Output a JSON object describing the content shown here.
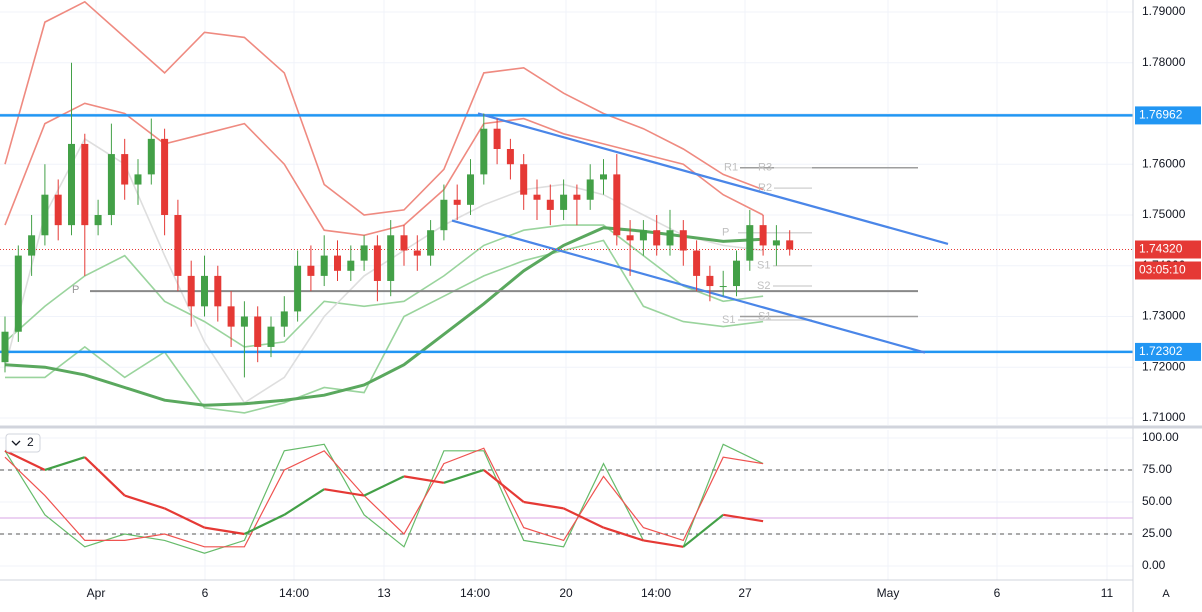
{
  "chart_data": [
    {
      "type": "candlestick",
      "open": [
        1.721,
        1.727,
        1.742,
        1.746,
        1.754,
        1.748,
        1.764,
        1.748,
        1.75,
        1.762,
        1.756,
        1.758,
        1.765,
        1.75,
        1.738,
        1.732,
        1.738,
        1.732,
        1.728,
        1.73,
        1.724,
        1.728,
        1.731,
        1.74,
        1.738,
        1.742,
        1.739,
        1.741,
        1.744,
        1.737,
        1.746,
        1.743,
        1.742,
        1.747,
        1.753,
        1.752,
        1.758,
        1.767,
        1.763,
        1.76,
        1.754,
        1.753,
        1.751,
        1.754,
        1.753,
        1.757,
        1.758,
        1.746,
        1.745,
        1.747,
        1.744,
        1.747,
        1.743,
        1.738,
        1.736,
        1.736,
        1.741,
        1.748,
        1.744,
        1.745
      ],
      "high": [
        1.73,
        1.744,
        1.75,
        1.76,
        1.757,
        1.78,
        1.766,
        1.753,
        1.768,
        1.765,
        1.761,
        1.769,
        1.767,
        1.753,
        1.741,
        1.742,
        1.74,
        1.735,
        1.733,
        1.732,
        1.73,
        1.734,
        1.743,
        1.744,
        1.746,
        1.745,
        1.744,
        1.746,
        1.746,
        1.749,
        1.748,
        1.746,
        1.749,
        1.756,
        1.756,
        1.761,
        1.77,
        1.769,
        1.765,
        1.762,
        1.757,
        1.756,
        1.757,
        1.756,
        1.76,
        1.761,
        1.762,
        1.749,
        1.749,
        1.75,
        1.751,
        1.749,
        1.745,
        1.74,
        1.739,
        1.743,
        1.751,
        1.75,
        1.748,
        1.747
      ],
      "low": [
        1.719,
        1.725,
        1.738,
        1.744,
        1.745,
        1.746,
        1.738,
        1.746,
        1.748,
        1.753,
        1.752,
        1.756,
        1.746,
        1.735,
        1.728,
        1.73,
        1.729,
        1.724,
        1.718,
        1.721,
        1.722,
        1.726,
        1.729,
        1.735,
        1.736,
        1.737,
        1.737,
        1.739,
        1.733,
        1.734,
        1.74,
        1.739,
        1.74,
        1.745,
        1.749,
        1.75,
        1.756,
        1.76,
        1.757,
        1.751,
        1.749,
        1.748,
        1.749,
        1.748,
        1.751,
        1.754,
        1.744,
        1.738,
        1.742,
        1.742,
        1.742,
        1.74,
        1.735,
        1.733,
        1.734,
        1.734,
        1.739,
        1.742,
        1.74,
        1.742
      ],
      "close": [
        1.727,
        1.742,
        1.746,
        1.754,
        1.748,
        1.764,
        1.748,
        1.75,
        1.762,
        1.756,
        1.758,
        1.765,
        1.75,
        1.738,
        1.732,
        1.738,
        1.732,
        1.728,
        1.73,
        1.724,
        1.728,
        1.731,
        1.74,
        1.738,
        1.742,
        1.739,
        1.741,
        1.744,
        1.737,
        1.746,
        1.743,
        1.742,
        1.747,
        1.753,
        1.752,
        1.758,
        1.767,
        1.763,
        1.76,
        1.754,
        1.753,
        1.751,
        1.754,
        1.753,
        1.757,
        1.758,
        1.746,
        1.745,
        1.747,
        1.744,
        1.747,
        1.743,
        1.738,
        1.736,
        1.736,
        1.741,
        1.748,
        1.744,
        1.745,
        1.7432
      ],
      "up_color": "#43a047",
      "down_color": "#e53935",
      "overlays": [
        {
          "color": "#ef8a80",
          "values": [
            1.76,
            1.788,
            1.792,
            1.785,
            1.778,
            1.786,
            1.785,
            1.778,
            1.756,
            1.75,
            1.751,
            1.759,
            1.778,
            1.779,
            1.774,
            1.77,
            1.767,
            1.763,
            1.758,
            1.755
          ]
        },
        {
          "color": "#ef8a80",
          "values": [
            1.748,
            1.768,
            1.772,
            1.77,
            1.764,
            1.766,
            1.768,
            1.76,
            1.747,
            1.746,
            1.748,
            1.755,
            1.768,
            1.769,
            1.766,
            1.764,
            1.762,
            1.76,
            1.754,
            1.75
          ]
        },
        {
          "color": "#9ad49d",
          "values": [
            1.725,
            1.732,
            1.738,
            1.742,
            1.733,
            1.729,
            1.724,
            1.725,
            1.733,
            1.732,
            1.733,
            1.738,
            1.744,
            1.747,
            1.748,
            1.748,
            1.742,
            1.736,
            1.733,
            1.734
          ]
        },
        {
          "color": "#9ad49d",
          "values": [
            1.718,
            1.718,
            1.724,
            1.718,
            1.723,
            1.712,
            1.711,
            1.713,
            1.716,
            1.715,
            1.73,
            1.734,
            1.738,
            1.741,
            1.743,
            1.745,
            1.732,
            1.729,
            1.728,
            1.729
          ]
        },
        {
          "color": "#dedede",
          "values": [
            1.72,
            1.75,
            1.765,
            1.76,
            1.742,
            1.725,
            1.713,
            1.718,
            1.73,
            1.738,
            1.743,
            1.748,
            1.752,
            1.755,
            1.756,
            1.754,
            1.75,
            1.746,
            1.744,
            1.743
          ]
        },
        {
          "color": "#5aa85e",
          "values": [
            1.7205,
            1.72,
            1.7185,
            1.716,
            1.7135,
            1.7125,
            1.7128,
            1.7135,
            1.7145,
            1.7165,
            1.7205,
            1.7265,
            1.7325,
            1.739,
            1.744,
            1.7475,
            1.7468,
            1.7458,
            1.7448,
            1.7452
          ]
        }
      ],
      "levels": [
        1.76962,
        1.72302
      ],
      "level_color": "#2196f3",
      "trendlines": [
        [
          1.77,
          1.7443
        ],
        [
          1.7489,
          1.7229
        ]
      ],
      "trend_color": "#4a86e8",
      "pivot": {
        "label": "P",
        "value": 1.735
      },
      "pivot_levels": [
        {
          "label": "R1",
          "value": 1.7593
        },
        {
          "label": "R3",
          "value": 1.7593
        },
        {
          "label": "R2",
          "value": 1.7553
        },
        {
          "label": "P",
          "value": 1.7465
        },
        {
          "label": "S1",
          "value": 1.74
        },
        {
          "label": "S2",
          "value": 1.736
        },
        {
          "label": "S1",
          "value": 1.73
        },
        {
          "label": "S1",
          "value": 1.7293
        }
      ],
      "last_price": {
        "value": 1.7432,
        "label": "1.74320"
      },
      "countdown": "03:05:10",
      "ylim": [
        1.70862,
        1.79236
      ],
      "yticks": [
        {
          "value": 1.79,
          "label": "1.79000"
        },
        {
          "value": 1.78,
          "label": "1.78000"
        },
        {
          "value": 1.77,
          "label": "1.77000"
        },
        {
          "value": 1.76,
          "label": "1.76000"
        },
        {
          "value": 1.75,
          "label": "1.75000"
        },
        {
          "value": 1.74,
          "label": "1.74000"
        },
        {
          "value": 1.73,
          "label": "1.73000"
        },
        {
          "value": 1.72,
          "label": "1.72000"
        },
        {
          "value": 1.71,
          "label": "1.71000"
        }
      ],
      "x_labels": [
        "Apr",
        "6",
        "14:00",
        "13",
        "14:00",
        "20",
        "14:00",
        "27",
        "May",
        "6",
        "11"
      ]
    },
    {
      "type": "line",
      "indicator_count": "2",
      "series": [
        {
          "color": "#66bb6a",
          "values": [
            90,
            40,
            15,
            25,
            20,
            10,
            20,
            90,
            95,
            40,
            15,
            90,
            90,
            20,
            15,
            80,
            20,
            15,
            95,
            80
          ]
        },
        {
          "color": "#ef5350",
          "values": [
            85,
            55,
            20,
            20,
            25,
            15,
            15,
            75,
            90,
            55,
            25,
            80,
            92,
            30,
            20,
            70,
            30,
            20,
            85,
            80
          ]
        }
      ],
      "momentum": {
        "up_color": "#43a047",
        "down_color": "#e53935",
        "values": [
          90,
          75,
          85,
          55,
          45,
          30,
          25,
          40,
          60,
          55,
          70,
          65,
          75,
          50,
          45,
          30,
          20,
          15,
          40,
          35
        ]
      },
      "reference_lines": [
        75,
        25
      ],
      "signal_line": 37.5,
      "ylim": [
        -10.9,
        106.2
      ],
      "yticks": [
        {
          "value": 100,
          "label": "100.00"
        },
        {
          "value": 75,
          "label": "75.00"
        },
        {
          "value": 50,
          "label": "50.00"
        },
        {
          "value": 25,
          "label": "25.00"
        },
        {
          "value": 0,
          "label": "0.00"
        }
      ]
    }
  ],
  "toolbar": {
    "auto_button": "A"
  }
}
